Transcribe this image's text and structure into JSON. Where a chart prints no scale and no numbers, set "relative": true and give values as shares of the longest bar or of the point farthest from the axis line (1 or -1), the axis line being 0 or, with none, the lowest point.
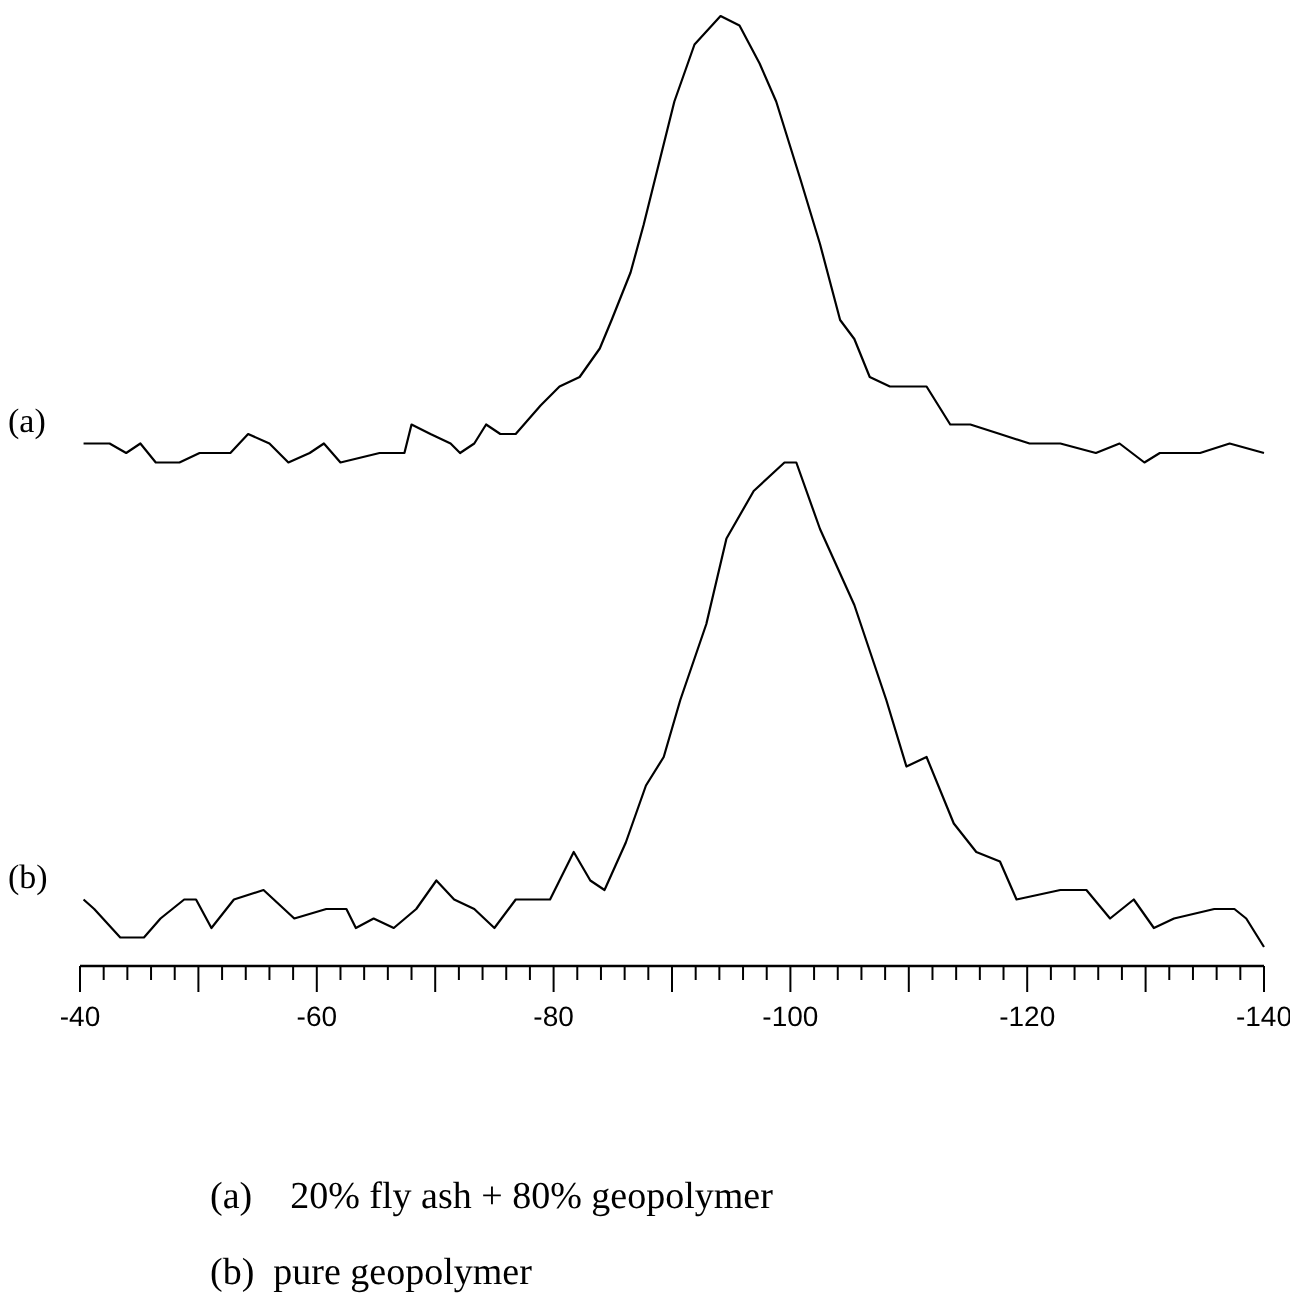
{
  "chart_data": {
    "type": "line",
    "relative": true,
    "xlim": [
      -40,
      -140
    ],
    "xticks": [
      -40,
      {
        "value": -42,
        "label": null
      },
      {
        "value": -44,
        "label": null
      },
      {
        "value": -46,
        "label": null
      },
      {
        "value": -48,
        "label": null
      },
      {
        "value": -50,
        "label": null
      },
      {
        "value": -52,
        "label": null
      },
      {
        "value": -54,
        "label": null
      },
      {
        "value": -56,
        "label": null
      },
      {
        "value": -58,
        "label": null
      },
      -60,
      {
        "value": -62,
        "label": null
      },
      {
        "value": -64,
        "label": null
      },
      {
        "value": -66,
        "label": null
      },
      {
        "value": -68,
        "label": null
      },
      {
        "value": -70,
        "label": null
      },
      {
        "value": -72,
        "label": null
      },
      {
        "value": -74,
        "label": null
      },
      {
        "value": -76,
        "label": null
      },
      {
        "value": -78,
        "label": null
      },
      -80,
      {
        "value": -82,
        "label": null
      },
      {
        "value": -84,
        "label": null
      },
      {
        "value": -86,
        "label": null
      },
      {
        "value": -88,
        "label": null
      },
      {
        "value": -90,
        "label": null
      },
      {
        "value": -92,
        "label": null
      },
      {
        "value": -94,
        "label": null
      },
      {
        "value": -96,
        "label": null
      },
      {
        "value": -98,
        "label": null
      },
      -100,
      {
        "value": -102,
        "label": null
      },
      {
        "value": -104,
        "label": null
      },
      {
        "value": -106,
        "label": null
      },
      {
        "value": -108,
        "label": null
      },
      {
        "value": -110,
        "label": null
      },
      {
        "value": -112,
        "label": null
      },
      {
        "value": -114,
        "label": null
      },
      {
        "value": -116,
        "label": null
      },
      {
        "value": -118,
        "label": null
      },
      -120,
      {
        "value": -122,
        "label": null
      },
      {
        "value": -124,
        "label": null
      },
      {
        "value": -126,
        "label": null
      },
      {
        "value": -128,
        "label": null
      },
      {
        "value": -130,
        "label": null
      },
      {
        "value": -132,
        "label": null
      },
      {
        "value": -134,
        "label": null
      },
      {
        "value": -136,
        "label": null
      },
      {
        "value": -138,
        "label": null
      },
      -140
    ],
    "series": [
      {
        "name": "(a)",
        "color": "#000000",
        "x": [
          -40.3,
          -42.5,
          -43.9,
          -45.1,
          -46.4,
          -48.4,
          -50.1,
          -52.7,
          -54.2,
          -56.0,
          -57.6,
          -59.4,
          -60.6,
          -62.0,
          -65.3,
          -67.4,
          -68.0,
          -69.6,
          -71.3,
          -72.1,
          -73.3,
          -74.3,
          -75.5,
          -76.8,
          -78.9,
          -80.5,
          -82.2,
          -83.9,
          -84.9,
          -86.5,
          -87.6,
          -89.0,
          -90.2,
          -91.9,
          -94.1,
          -95.7,
          -97.4,
          -98.8,
          -100.8,
          -102.5,
          -104.2,
          -105.4,
          -106.7,
          -108.4,
          -111.5,
          -113.5,
          -115.2,
          -117.7,
          -120.2,
          -122.8,
          -125.8,
          -127.8,
          -129.9,
          -131.2,
          -134.6,
          -137.1,
          -140.0
        ],
        "values": [
          0.55,
          0.55,
          0.54,
          0.55,
          0.53,
          0.53,
          0.54,
          0.54,
          0.56,
          0.55,
          0.53,
          0.54,
          0.55,
          0.53,
          0.54,
          0.54,
          0.57,
          0.56,
          0.55,
          0.54,
          0.55,
          0.57,
          0.56,
          0.56,
          0.59,
          0.61,
          0.62,
          0.65,
          0.68,
          0.73,
          0.78,
          0.85,
          0.91,
          0.97,
          1,
          0.99,
          0.95,
          0.91,
          0.83,
          0.76,
          0.68,
          0.66,
          0.62,
          0.61,
          0.61,
          0.57,
          0.57,
          0.56,
          0.55,
          0.55,
          0.54,
          0.55,
          0.53,
          0.54,
          0.54,
          0.55,
          0.54
        ]
      },
      {
        "name": "(b)",
        "color": "#000000",
        "x": [
          -40.3,
          -41.2,
          -43.4,
          -45.4,
          -46.8,
          -48.8,
          -49.8,
          -51.1,
          -53.0,
          -55.5,
          -58.1,
          -60.8,
          -62.5,
          -63.3,
          -64.8,
          -66.5,
          -68.4,
          -70.1,
          -71.6,
          -73.3,
          -75.0,
          -76.8,
          -79.7,
          -81.7,
          -83.1,
          -84.3,
          -86.1,
          -87.8,
          -89.3,
          -90.7,
          -92.9,
          -94.6,
          -96.9,
          -99.5,
          -100.5,
          -102.5,
          -105.4,
          -108.1,
          -109.8,
          -111.5,
          -113.8,
          -115.7,
          -117.7,
          -119.1,
          -122.8,
          -125.0,
          -127.0,
          -129.0,
          -130.7,
          -132.4,
          -135.8,
          -137.5,
          -138.5,
          -140.0
        ],
        "values": [
          0.07,
          0.06,
          0.03,
          0.03,
          0.05,
          0.07,
          0.07,
          0.04,
          0.07,
          0.08,
          0.05,
          0.06,
          0.06,
          0.04,
          0.05,
          0.04,
          0.06,
          0.09,
          0.07,
          0.06,
          0.04,
          0.07,
          0.07,
          0.12,
          0.09,
          0.08,
          0.13,
          0.19,
          0.22,
          0.28,
          0.36,
          0.45,
          0.5,
          0.53,
          0.53,
          0.46,
          0.38,
          0.28,
          0.21,
          0.22,
          0.15,
          0.12,
          0.11,
          0.07,
          0.08,
          0.08,
          0.05,
          0.07,
          0.04,
          0.05,
          0.06,
          0.06,
          0.05,
          0.02
        ]
      }
    ],
    "annotations": [
      "(a)    20% fly ash + 80% geopolymer",
      "(b)  pure geopolymer"
    ]
  }
}
